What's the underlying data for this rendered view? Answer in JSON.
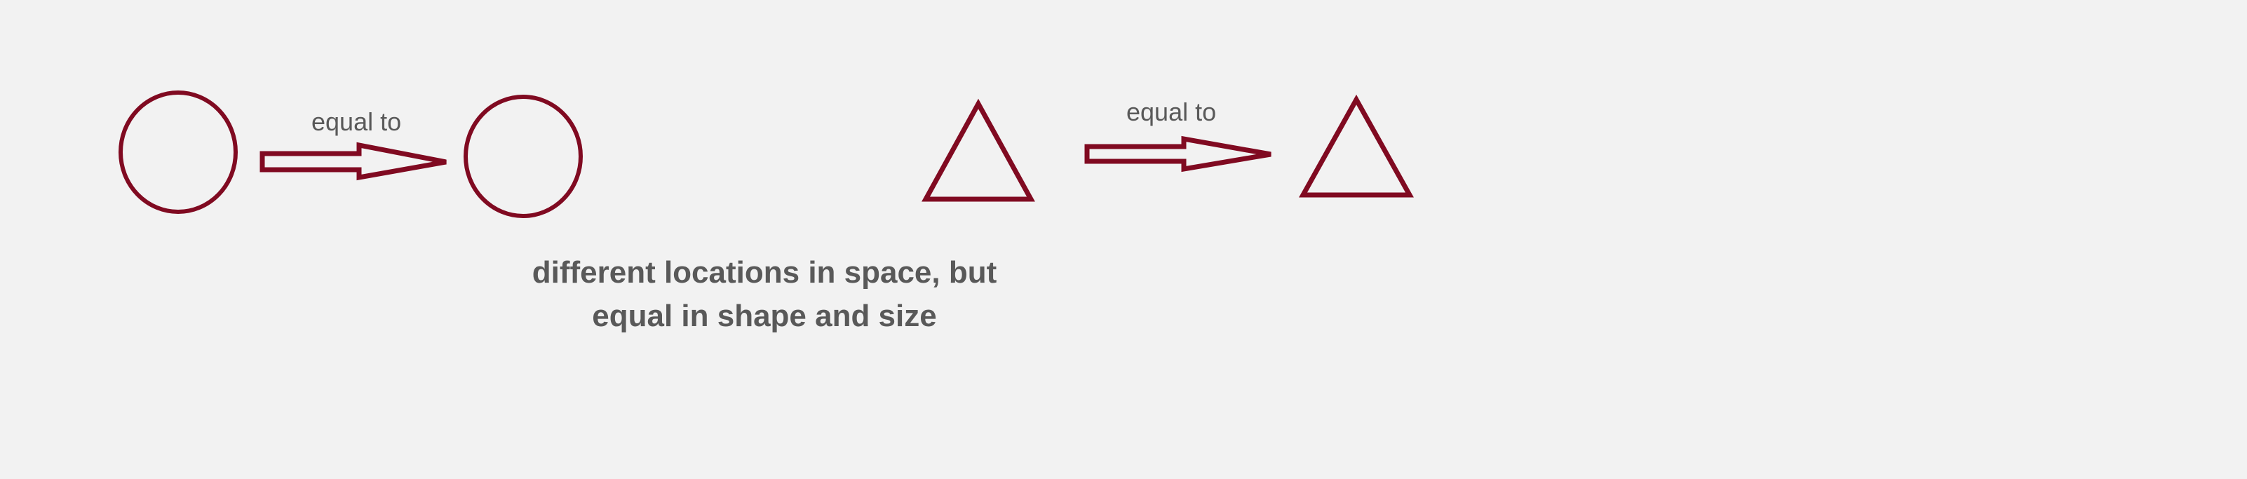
{
  "labels": {
    "left_arrow_text": "equal to",
    "right_arrow_text": "equal to"
  },
  "caption": {
    "line1": "different locations in space, but",
    "line2": "equal in shape and size"
  },
  "colors": {
    "shape_stroke": "#800a21",
    "background": "#f2f2f2",
    "text": "#595959"
  }
}
